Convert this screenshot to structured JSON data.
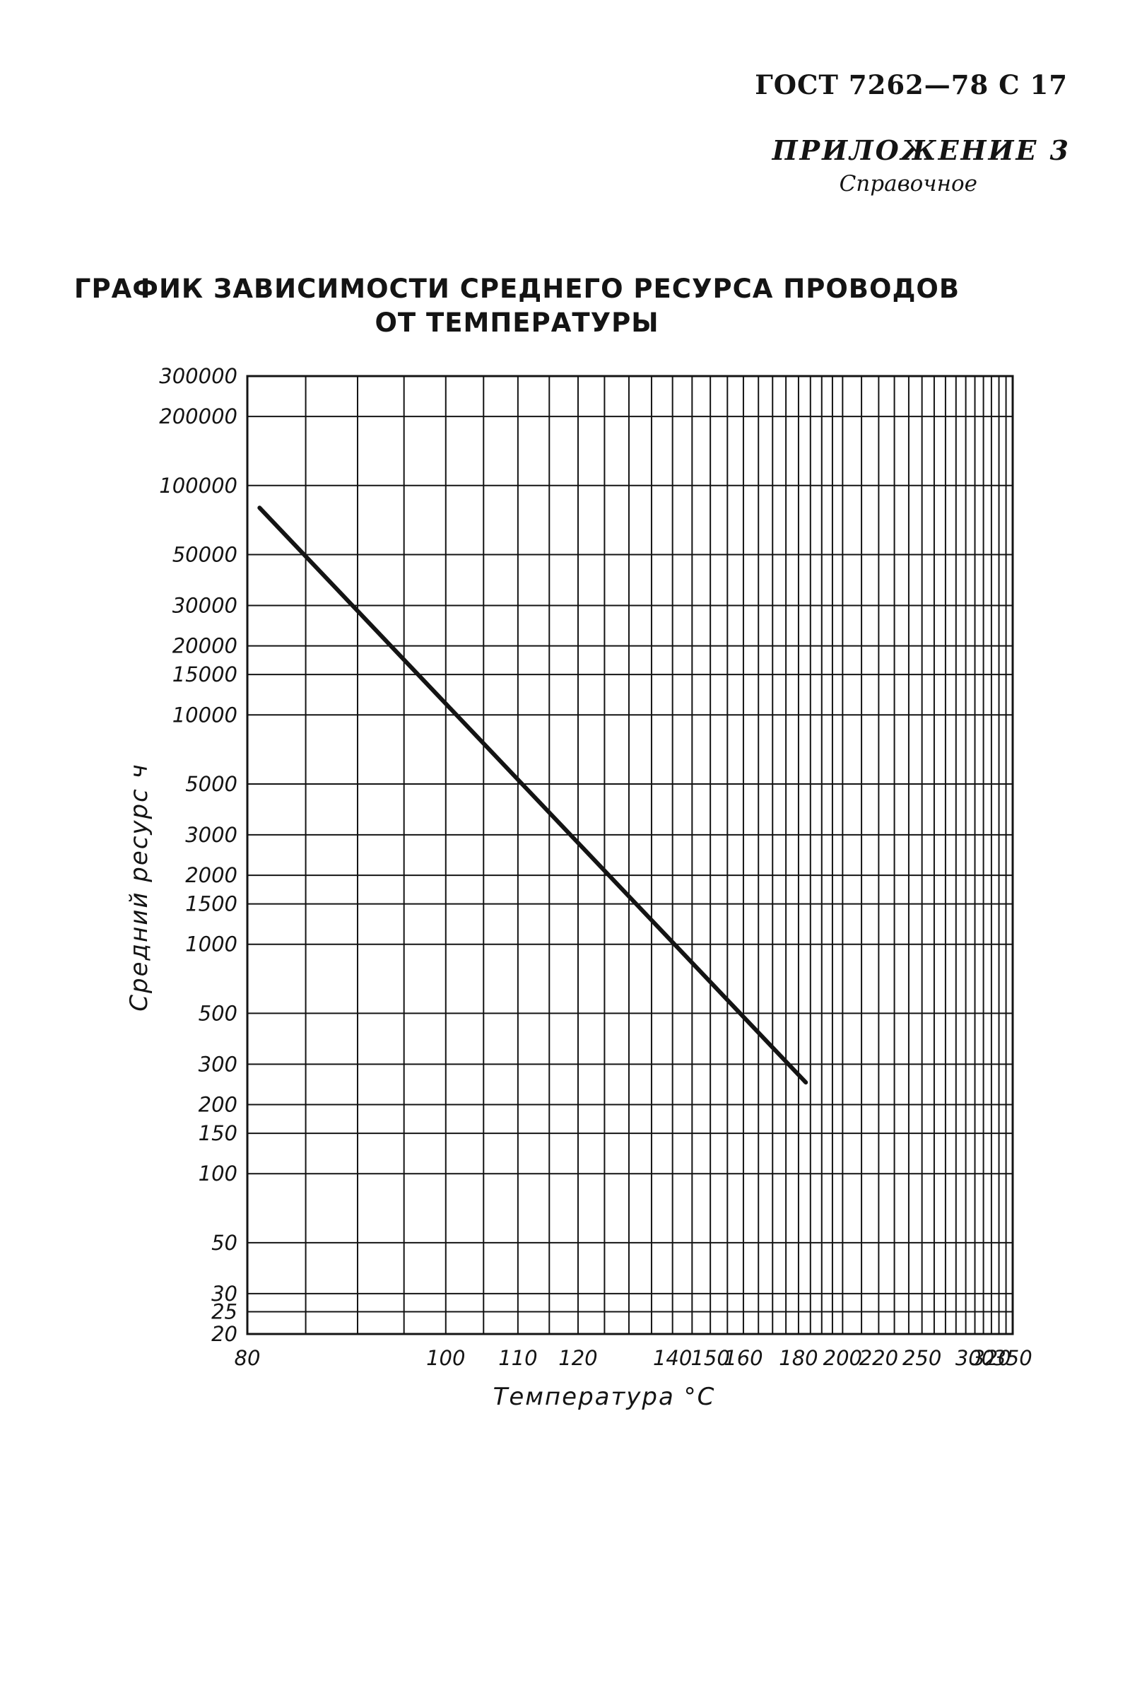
{
  "header": {
    "standard": "ГОСТ 7262—78 С 17",
    "appendix": "ПРИЛОЖЕНИЕ 3",
    "appendix_type": "Справочное"
  },
  "chart_data": {
    "type": "line",
    "title_line1": "ГРАФИК ЗАВИСИМОСТИ СРЕДНЕГО РЕСУРСА ПРОВОДОВ",
    "title_line2": "ОТ ТЕМПЕРАТУРЫ",
    "xlabel": "Температура °С",
    "ylabel": "Средний ресурс ч",
    "x_scale": "reciprocal",
    "y_scale": "log",
    "xlim": [
      80,
      350
    ],
    "ylim": [
      20,
      300000
    ],
    "grid": true,
    "x_ticks": [
      80,
      100,
      110,
      120,
      140,
      150,
      160,
      180,
      200,
      220,
      250,
      300,
      320,
      350
    ],
    "x_tick_labels": [
      "80",
      "100",
      "110",
      "120",
      "140",
      "150",
      "160",
      "180",
      "200",
      "220",
      "250",
      "300",
      "320",
      "350"
    ],
    "x_grid": [
      80,
      85,
      90,
      95,
      100,
      105,
      110,
      115,
      120,
      125,
      130,
      135,
      140,
      145,
      150,
      155,
      160,
      165,
      170,
      175,
      180,
      185,
      190,
      195,
      200,
      210,
      220,
      230,
      240,
      250,
      260,
      270,
      280,
      290,
      300,
      310,
      320,
      330,
      340,
      350
    ],
    "y_ticks": [
      20,
      25,
      30,
      50,
      100,
      150,
      200,
      300,
      500,
      1000,
      1500,
      2000,
      3000,
      5000,
      10000,
      15000,
      20000,
      30000,
      50000,
      100000,
      200000,
      300000
    ],
    "y_tick_labels": [
      "20",
      "25",
      "30",
      "50",
      "100",
      "150",
      "200",
      "300",
      "500",
      "1000",
      "1500",
      "2000",
      "3000",
      "5000",
      "10000",
      "15000",
      "20000",
      "30000",
      "50000",
      "100000",
      "200000",
      "300000"
    ],
    "series": [
      {
        "values": [
          [
            81,
            80000
          ],
          [
            183,
            250
          ]
        ]
      }
    ]
  }
}
